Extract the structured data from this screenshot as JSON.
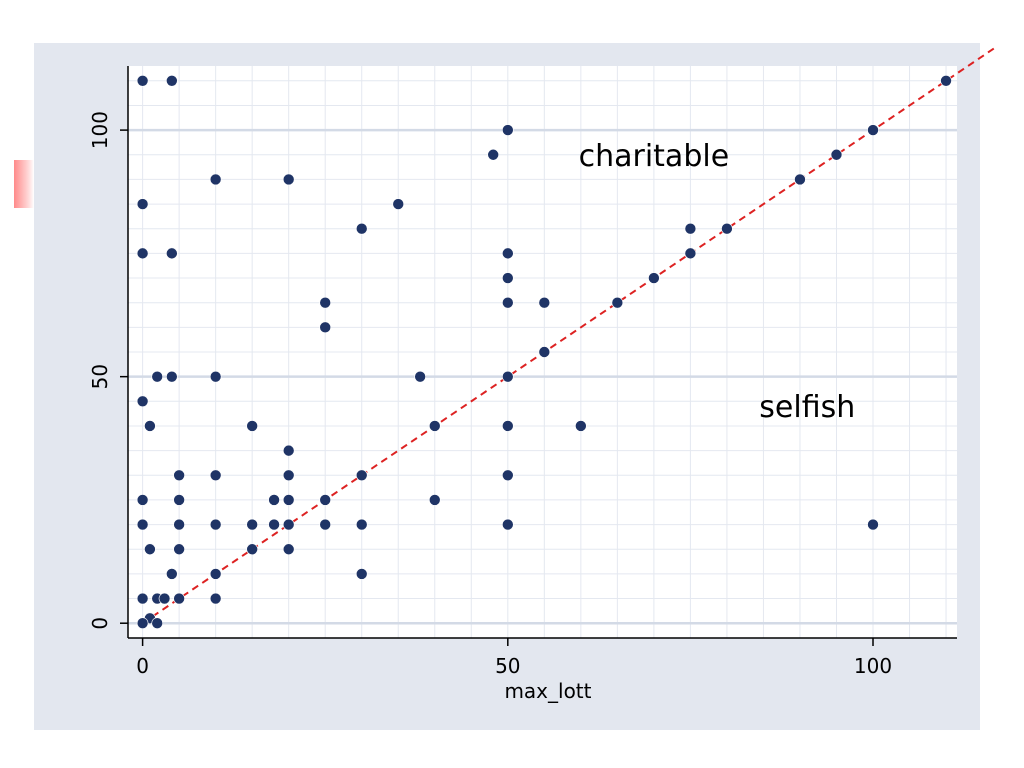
{
  "chart_data": {
    "type": "scatter",
    "xlabel": "max_lott",
    "ylabel": "",
    "xlim": [
      -2,
      111.5
    ],
    "ylim": [
      -3,
      113
    ],
    "xticks": [
      0,
      50,
      100
    ],
    "yticks": [
      0,
      50,
      100
    ],
    "grid": true,
    "reference_line": {
      "type": "y=x",
      "style": "dashed",
      "color": "#dd2222"
    },
    "marker_color": "#1f3466",
    "annotations": [
      {
        "text": "charitable",
        "x": 70,
        "y": 95
      },
      {
        "text": "selfish",
        "x": 91,
        "y": 44
      }
    ],
    "points": [
      [
        0,
        110
      ],
      [
        4,
        110
      ],
      [
        110,
        110
      ],
      [
        50,
        100
      ],
      [
        100,
        100
      ],
      [
        48,
        95
      ],
      [
        95,
        95
      ],
      [
        10,
        90
      ],
      [
        20,
        90
      ],
      [
        90,
        90
      ],
      [
        0,
        85
      ],
      [
        35,
        85
      ],
      [
        30,
        80
      ],
      [
        75,
        80
      ],
      [
        80,
        80
      ],
      [
        0,
        75
      ],
      [
        4,
        75
      ],
      [
        50,
        75
      ],
      [
        75,
        75
      ],
      [
        50,
        70
      ],
      [
        70,
        70
      ],
      [
        25,
        65
      ],
      [
        50,
        65
      ],
      [
        55,
        65
      ],
      [
        65,
        65
      ],
      [
        25,
        60
      ],
      [
        55,
        55
      ],
      [
        2,
        50
      ],
      [
        4,
        50
      ],
      [
        10,
        50
      ],
      [
        38,
        50
      ],
      [
        50,
        50
      ],
      [
        0,
        45
      ],
      [
        1,
        40
      ],
      [
        15,
        40
      ],
      [
        40,
        40
      ],
      [
        50,
        40
      ],
      [
        60,
        40
      ],
      [
        20,
        35
      ],
      [
        5,
        30
      ],
      [
        10,
        30
      ],
      [
        20,
        30
      ],
      [
        30,
        30
      ],
      [
        50,
        30
      ],
      [
        0,
        25
      ],
      [
        5,
        25
      ],
      [
        18,
        25
      ],
      [
        20,
        25
      ],
      [
        25,
        25
      ],
      [
        40,
        25
      ],
      [
        0,
        20
      ],
      [
        5,
        20
      ],
      [
        10,
        20
      ],
      [
        15,
        20
      ],
      [
        18,
        20
      ],
      [
        20,
        20
      ],
      [
        25,
        20
      ],
      [
        30,
        20
      ],
      [
        50,
        20
      ],
      [
        100,
        20
      ],
      [
        1,
        15
      ],
      [
        5,
        15
      ],
      [
        15,
        15
      ],
      [
        20,
        15
      ],
      [
        4,
        10
      ],
      [
        10,
        10
      ],
      [
        30,
        10
      ],
      [
        0,
        5
      ],
      [
        2,
        5
      ],
      [
        3,
        5
      ],
      [
        5,
        5
      ],
      [
        10,
        5
      ],
      [
        1,
        1
      ],
      [
        0,
        0
      ],
      [
        2,
        0
      ]
    ]
  }
}
